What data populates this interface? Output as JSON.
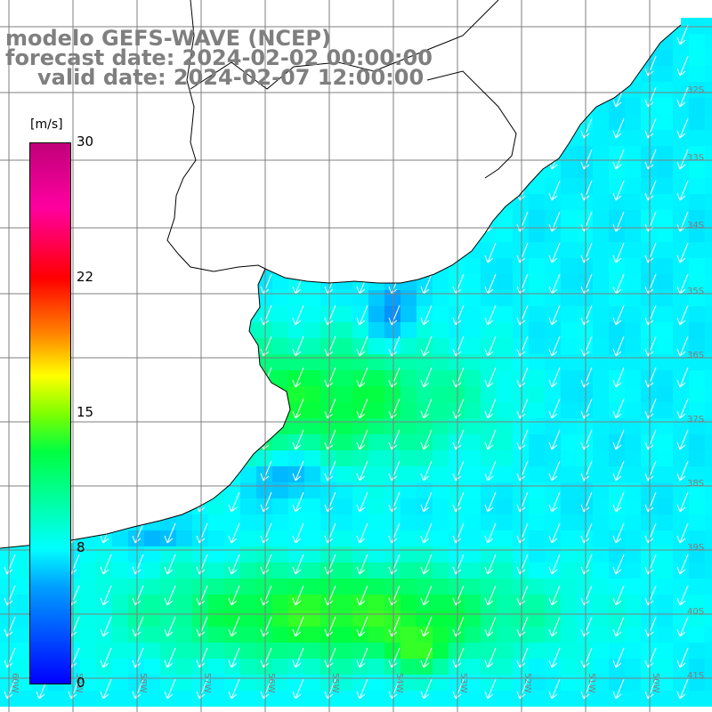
{
  "title": {
    "line1": "modelo GEFS-WAVE (NCEP)",
    "line2": "forecast date: 2024-02-02 00:00:00",
    "line3": "valid date: 2024-02-07 12:00:00"
  },
  "colorbar": {
    "units": "[m/s]",
    "ticks": [
      "30",
      "22",
      "15",
      "8",
      "0"
    ],
    "tick_values": [
      30,
      22,
      15,
      8,
      0
    ],
    "range": [
      0,
      30
    ],
    "colors": [
      "#0000ff",
      "#00a0ff",
      "#00ffff",
      "#00ff40",
      "#7fff00",
      "#ffff00",
      "#ff8000",
      "#ff0000",
      "#ff00a0",
      "#c0007a"
    ]
  },
  "grid": {
    "lat_labels": [
      "32S",
      "33S",
      "34S",
      "35S",
      "36S",
      "37S",
      "38S",
      "39S",
      "40S",
      "41S"
    ],
    "lon_labels": [
      "60W",
      "59W",
      "58W",
      "57W",
      "56W",
      "55W",
      "54W",
      "53W",
      "52W",
      "51W",
      "50W"
    ],
    "line_color": "#7f7f7f"
  },
  "map": {
    "land_color": "#ffffff",
    "coast_color": "#000000",
    "arrow_color": "#ffffff",
    "wind_direction": "from north-east (arrows pointing south-west)"
  }
}
